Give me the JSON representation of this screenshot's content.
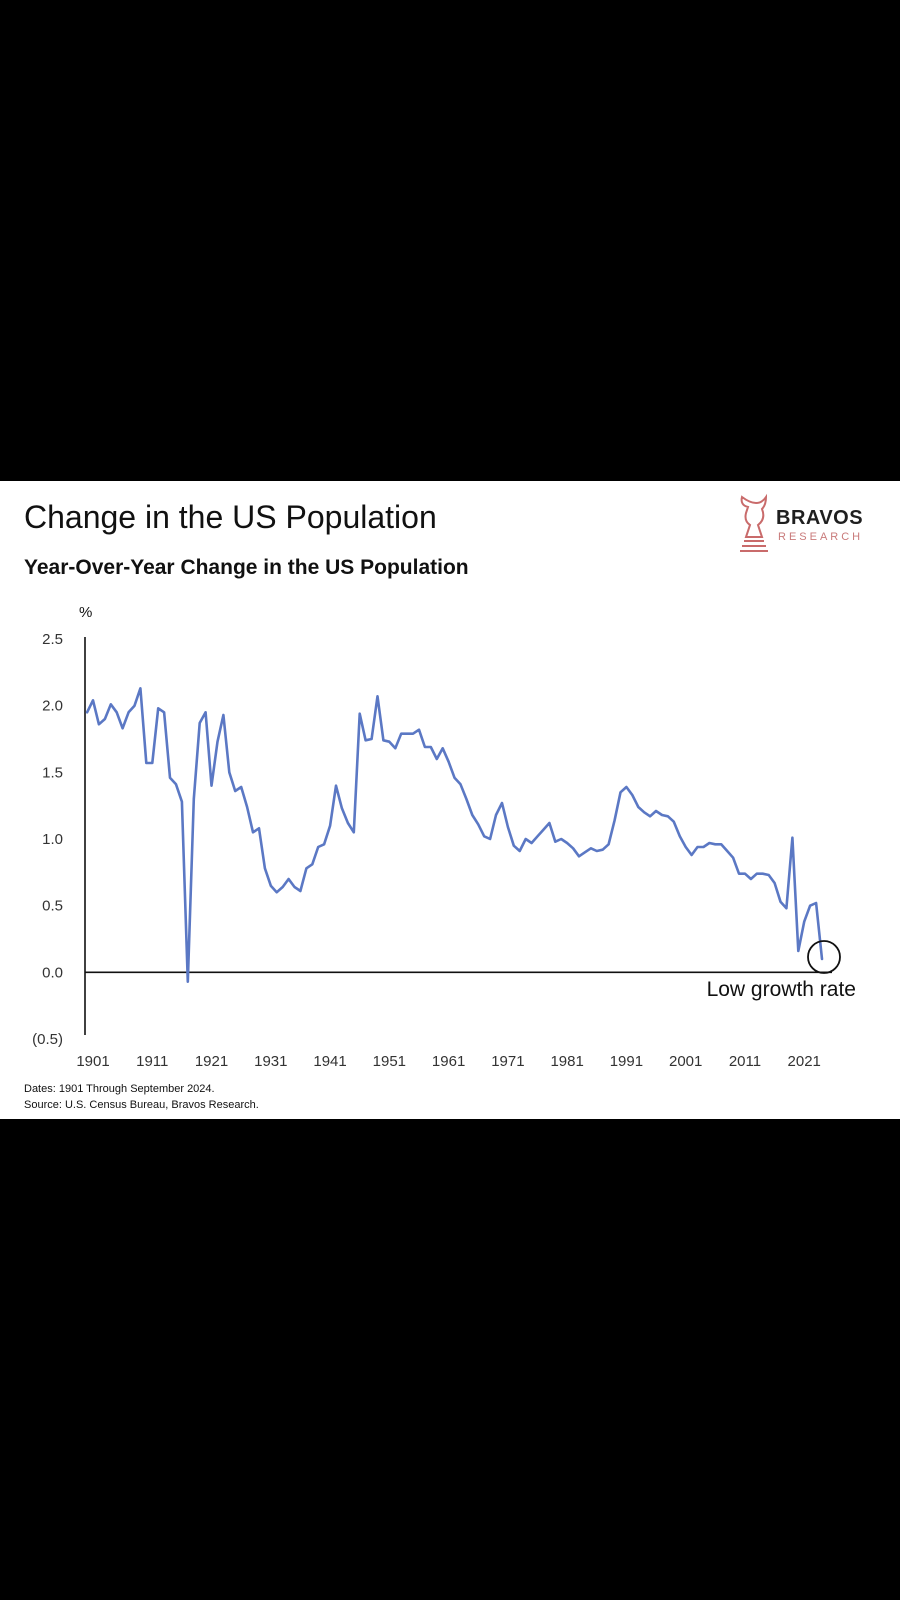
{
  "header": {
    "title": "Change in the US Population",
    "subtitle": "Year-Over-Year Change in the US Population"
  },
  "logo": {
    "name": "BRAVOS",
    "sub": "RESEARCH",
    "color": "#c96b6b"
  },
  "footer": {
    "dates": "Dates: 1901 Through September 2024.",
    "source": "Source: U.S. Census Bureau, Bravos Research."
  },
  "colors": {
    "line": "#5b78c4",
    "axis": "#111111"
  },
  "chart_data": {
    "type": "line",
    "title": "Change in the US Population",
    "subtitle": "Year-Over-Year Change in the US Population",
    "ylabel": "%",
    "xlabel": "",
    "xlim": [
      1901,
      2024
    ],
    "ylim": [
      -0.5,
      2.5
    ],
    "y_ticks": [
      2.5,
      2.0,
      1.5,
      1.0,
      0.5,
      0.0,
      -0.5
    ],
    "y_tick_labels": [
      "2.5",
      "2.0",
      "1.5",
      "1.0",
      "0.5",
      "0.0",
      "(0.5)"
    ],
    "x_ticks": [
      1901,
      1911,
      1921,
      1931,
      1941,
      1951,
      1961,
      1971,
      1981,
      1991,
      2001,
      2011,
      2021
    ],
    "grid": false,
    "legend": "none",
    "annotation": {
      "text": "Low growth rate",
      "x": 2024,
      "y": 0.1,
      "shape": "circle"
    },
    "series": [
      {
        "x": [
          1900,
          1901,
          1902,
          1903,
          1904,
          1905,
          1906,
          1907,
          1908,
          1909,
          1910,
          1911,
          1912,
          1913,
          1914,
          1915,
          1916,
          1917,
          1918,
          1919,
          1920,
          1921,
          1922,
          1923,
          1924,
          1925,
          1926,
          1927,
          1928,
          1929,
          1930,
          1931,
          1932,
          1933,
          1934,
          1935,
          1936,
          1937,
          1938,
          1939,
          1940,
          1941,
          1942,
          1943,
          1944,
          1945,
          1946,
          1947,
          1948,
          1949,
          1950,
          1951,
          1952,
          1953,
          1954,
          1955,
          1956,
          1957,
          1958,
          1959,
          1960,
          1961,
          1962,
          1963,
          1964,
          1965,
          1966,
          1967,
          1968,
          1969,
          1970,
          1971,
          1972,
          1973,
          1974,
          1975,
          1976,
          1977,
          1978,
          1979,
          1980,
          1981,
          1982,
          1983,
          1984,
          1985,
          1986,
          1987,
          1988,
          1989,
          1990,
          1991,
          1992,
          1993,
          1994,
          1995,
          1996,
          1997,
          1998,
          1999,
          2000,
          2001,
          2002,
          2003,
          2004,
          2005,
          2006,
          2007,
          2008,
          2009,
          2010,
          2011,
          2012,
          2013,
          2014,
          2015,
          2016,
          2017,
          2018,
          2019,
          2020,
          2021,
          2022,
          2023,
          2024
        ],
        "values": [
          1.95,
          2.04,
          1.86,
          1.9,
          2.01,
          1.95,
          1.83,
          1.95,
          2.0,
          2.13,
          1.57,
          1.57,
          1.98,
          1.95,
          1.46,
          1.41,
          1.28,
          -0.07,
          1.3,
          1.87,
          1.95,
          1.4,
          1.73,
          1.93,
          1.5,
          1.36,
          1.39,
          1.24,
          1.05,
          1.08,
          0.78,
          0.65,
          0.6,
          0.64,
          0.7,
          0.64,
          0.61,
          0.78,
          0.81,
          0.94,
          0.96,
          1.1,
          1.4,
          1.23,
          1.12,
          1.05,
          1.94,
          1.74,
          1.75,
          2.07,
          1.74,
          1.73,
          1.68,
          1.79,
          1.79,
          1.79,
          1.82,
          1.69,
          1.69,
          1.6,
          1.68,
          1.58,
          1.46,
          1.41,
          1.3,
          1.18,
          1.11,
          1.02,
          1.0,
          1.18,
          1.27,
          1.09,
          0.95,
          0.91,
          1.0,
          0.97,
          1.02,
          1.07,
          1.12,
          0.98,
          1.0,
          0.97,
          0.93,
          0.87,
          0.9,
          0.93,
          0.91,
          0.92,
          0.96,
          1.14,
          1.35,
          1.39,
          1.33,
          1.24,
          1.2,
          1.17,
          1.21,
          1.18,
          1.17,
          1.13,
          1.02,
          0.94,
          0.88,
          0.94,
          0.94,
          0.97,
          0.96,
          0.96,
          0.91,
          0.86,
          0.74,
          0.74,
          0.7,
          0.74,
          0.74,
          0.73,
          0.67,
          0.53,
          0.48,
          1.01,
          0.16,
          0.38,
          0.5,
          0.52,
          0.1
        ]
      }
    ]
  }
}
